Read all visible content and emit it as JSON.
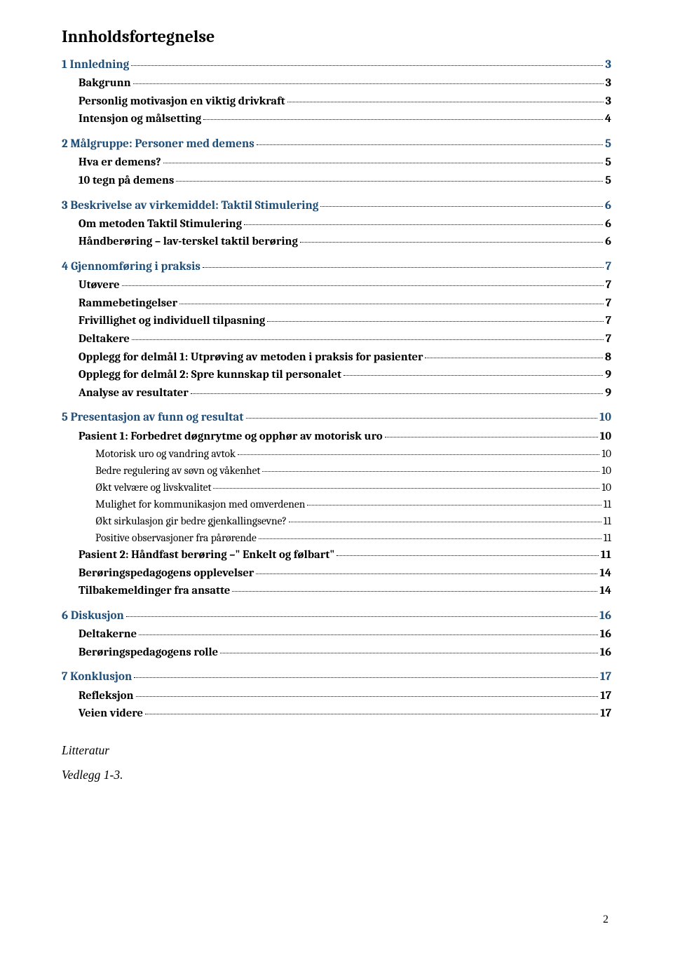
{
  "colors": {
    "heading_link": "#1f4e79",
    "text": "#000000",
    "background": "#ffffff"
  },
  "toc_title": "Innholdsfortegnelse",
  "entries": [
    {
      "level": 1,
      "link": true,
      "label": "1 Innledning",
      "page": "3"
    },
    {
      "level": 2,
      "link": false,
      "label": "Bakgrunn",
      "page": "3"
    },
    {
      "level": 2,
      "link": false,
      "label": "Personlig motivasjon en viktig drivkraft",
      "page": "3"
    },
    {
      "level": 2,
      "link": false,
      "label": "Intensjon og målsetting",
      "page": "4"
    },
    {
      "level": 1,
      "link": true,
      "label": "2 Målgruppe: Personer med demens",
      "page": "5"
    },
    {
      "level": 2,
      "link": false,
      "label": "Hva er demens?",
      "page": "5"
    },
    {
      "level": 2,
      "link": false,
      "label": "10 tegn på demens",
      "page": "5"
    },
    {
      "level": 1,
      "link": true,
      "label": "3 Beskrivelse av virkemiddel: Taktil Stimulering",
      "page": "6"
    },
    {
      "level": 2,
      "link": false,
      "label": "Om metoden Taktil Stimulering",
      "page": "6"
    },
    {
      "level": 2,
      "link": false,
      "label": "Håndberøring – lav-terskel taktil berøring",
      "page": "6"
    },
    {
      "level": 1,
      "link": true,
      "label": "4 Gjennomføring i praksis",
      "page": "7"
    },
    {
      "level": 2,
      "link": false,
      "label": "Utøvere",
      "page": "7"
    },
    {
      "level": 2,
      "link": false,
      "label": "Rammebetingelser",
      "page": "7"
    },
    {
      "level": 2,
      "link": false,
      "label": "Frivillighet og individuell tilpasning",
      "page": "7"
    },
    {
      "level": 2,
      "link": false,
      "label": "Deltakere",
      "page": "7"
    },
    {
      "level": 2,
      "link": false,
      "label": "Opplegg for delmål 1: Utprøving av metoden i praksis for pasienter",
      "page": "8"
    },
    {
      "level": 2,
      "link": false,
      "label": "Opplegg for delmål 2: Spre kunnskap til personalet",
      "page": "9"
    },
    {
      "level": 2,
      "link": false,
      "label": "Analyse av resultater",
      "page": "9"
    },
    {
      "level": 1,
      "link": true,
      "label": "5 Presentasjon av funn og resultat",
      "page": "10"
    },
    {
      "level": 2,
      "link": false,
      "label": "Pasient 1: Forbedret døgnrytme og opphør av motorisk uro",
      "page": "10"
    },
    {
      "level": 3,
      "link": false,
      "label": "Motorisk uro og vandring avtok",
      "page": "10"
    },
    {
      "level": 3,
      "link": false,
      "label": "Bedre regulering av søvn og våkenhet",
      "page": "10"
    },
    {
      "level": 3,
      "link": false,
      "label": "Økt velvære og livskvalitet",
      "page": "10"
    },
    {
      "level": 3,
      "link": false,
      "label": "Mulighet for kommunikasjon med omverdenen",
      "page": "11"
    },
    {
      "level": 3,
      "link": false,
      "label": "Økt sirkulasjon gir bedre gjenkallingsevne?",
      "page": "11"
    },
    {
      "level": 3,
      "link": false,
      "label": "Positive observasjoner fra pårørende",
      "page": "11"
    },
    {
      "level": 2,
      "link": false,
      "label": "Pasient 2: Håndfast berøring –\" Enkelt og følbart\"",
      "page": "11"
    },
    {
      "level": 2,
      "link": false,
      "label": "Berøringspedagogens opplevelser",
      "page": "14"
    },
    {
      "level": 2,
      "link": false,
      "label": "Tilbakemeldinger fra ansatte",
      "page": "14"
    },
    {
      "level": 1,
      "link": true,
      "label": "6 Diskusjon",
      "page": "16"
    },
    {
      "level": 2,
      "link": false,
      "label": "Deltakerne",
      "page": "16"
    },
    {
      "level": 2,
      "link": false,
      "label": "Berøringspedagogens rolle",
      "page": "16"
    },
    {
      "level": 1,
      "link": true,
      "label": "7 Konklusjon",
      "page": "17"
    },
    {
      "level": 2,
      "link": false,
      "label": "Refleksjon",
      "page": "17"
    },
    {
      "level": 2,
      "link": false,
      "label": "Veien videre",
      "page": "17"
    }
  ],
  "extras": [
    "Litteratur",
    "Vedlegg 1-3."
  ],
  "page_number": "2"
}
